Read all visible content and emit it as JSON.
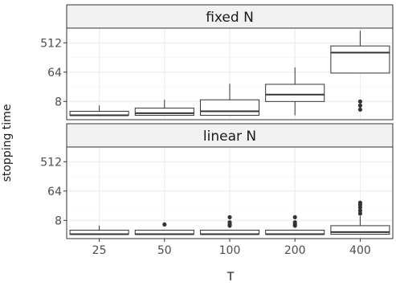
{
  "chart_data": {
    "type": "boxplot",
    "xlabel": "T",
    "ylabel": "stopping time",
    "y_scale": "log2",
    "y_ticks": [
      8,
      64,
      512
    ],
    "ylim": [
      2.2,
      1450
    ],
    "categories": [
      "25",
      "50",
      "100",
      "200",
      "400"
    ],
    "facets": [
      {
        "label": "fixed N",
        "boxes": [
          {
            "category": "25",
            "lower": 3,
            "q1": 3,
            "median": 3,
            "q3": 4,
            "upper": 6,
            "outliers": []
          },
          {
            "category": "50",
            "lower": 3,
            "q1": 3,
            "median": 3.5,
            "q3": 5,
            "upper": 9,
            "outliers": []
          },
          {
            "category": "100",
            "lower": 3,
            "q1": 3,
            "median": 4,
            "q3": 9,
            "upper": 28,
            "outliers": []
          },
          {
            "category": "200",
            "lower": 3,
            "q1": 8,
            "median": 13,
            "q3": 27,
            "upper": 90,
            "outliers": []
          },
          {
            "category": "400",
            "lower": 60,
            "q1": 60,
            "median": 256,
            "q3": 410,
            "upper": 1200,
            "outliers": [
              4.5,
              6,
              8
            ]
          }
        ]
      },
      {
        "label": "linear N",
        "boxes": [
          {
            "category": "25",
            "lower": 3,
            "q1": 3,
            "median": 3,
            "q3": 4,
            "upper": 5.5,
            "outliers": []
          },
          {
            "category": "50",
            "lower": 3,
            "q1": 3,
            "median": 3,
            "q3": 4,
            "upper": 4,
            "outliers": [
              6
            ]
          },
          {
            "category": "100",
            "lower": 3,
            "q1": 3,
            "median": 3,
            "q3": 4,
            "upper": 4,
            "outliers": [
              5.5,
              6,
              7,
              10
            ]
          },
          {
            "category": "200",
            "lower": 3,
            "q1": 3,
            "median": 3,
            "q3": 4,
            "upper": 4,
            "outliers": [
              5.5,
              6,
              7,
              10
            ]
          },
          {
            "category": "400",
            "lower": 3,
            "q1": 3,
            "median": 3.5,
            "q3": 5.5,
            "upper": 11,
            "outliers": [
              13,
              16,
              20,
              24,
              28
            ]
          }
        ]
      }
    ],
    "grid": true,
    "colors": {
      "panel_background": "#ffffff",
      "strip_background": "#f2f2f2",
      "grid_major": "#ebebeb",
      "grid_minor": "#f5f5f5",
      "box_fill": "#ffffff",
      "box_line": "#333333",
      "outlier": "#333333",
      "tick": "#333333"
    }
  }
}
